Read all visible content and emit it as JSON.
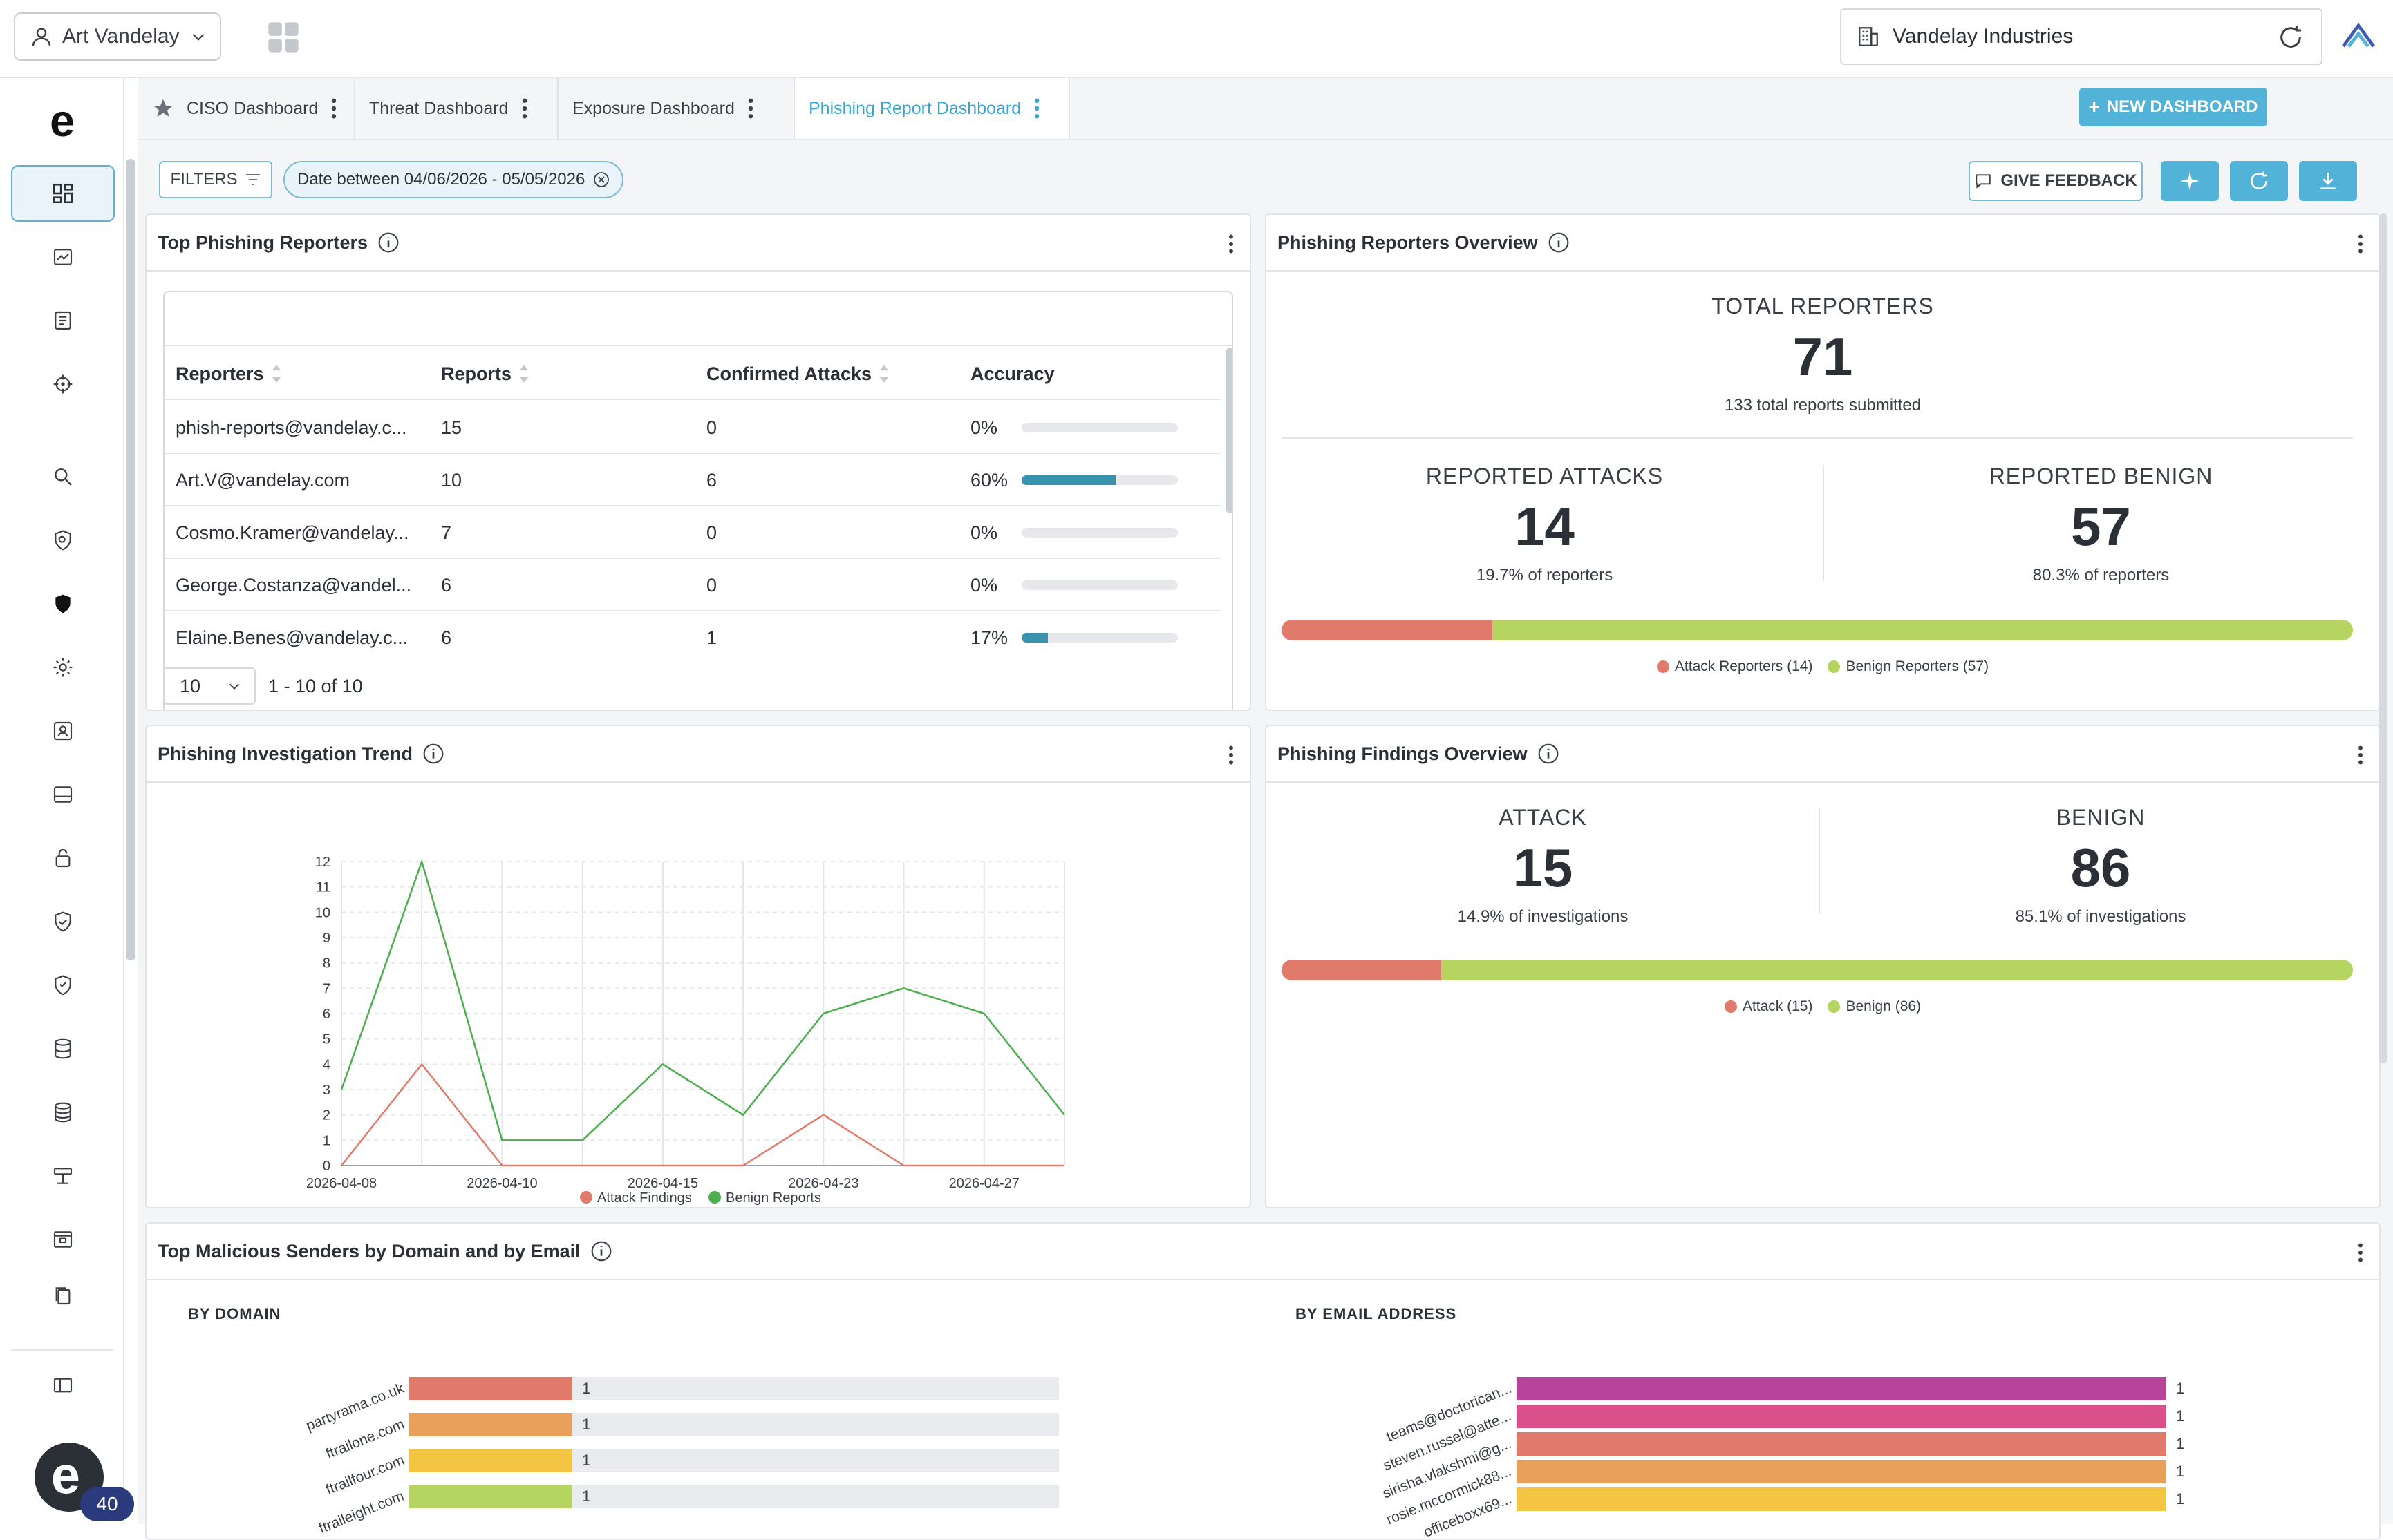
{
  "topbar": {
    "user_name": "Art Vandelay",
    "org_name": "Vandelay Industries"
  },
  "tabs": [
    {
      "label": "CISO Dashboard"
    },
    {
      "label": "Threat Dashboard"
    },
    {
      "label": "Exposure Dashboard"
    },
    {
      "label": "Phishing Report Dashboard"
    }
  ],
  "toolbar": {
    "new_dashboard": "NEW DASHBOARD",
    "filters": "FILTERS",
    "date_filter": "Date between 04/06/2026 - 05/05/2026",
    "feedback": "GIVE FEEDBACK"
  },
  "fab": {
    "badge": "40"
  },
  "top_reporters": {
    "title": "Top Phishing Reporters",
    "columns": [
      "Reporters",
      "Reports",
      "Confirmed Attacks",
      "Accuracy"
    ],
    "rows": [
      {
        "reporter": "phish-reports@vandelay.c...",
        "reports": "15",
        "confirmed": "0",
        "accuracy": "0%",
        "accuracy_value": 0
      },
      {
        "reporter": "Art.V@vandelay.com",
        "reports": "10",
        "confirmed": "6",
        "accuracy": "60%",
        "accuracy_value": 60
      },
      {
        "reporter": "Cosmo.Kramer@vandelay...",
        "reports": "7",
        "confirmed": "0",
        "accuracy": "0%",
        "accuracy_value": 0
      },
      {
        "reporter": "George.Costanza@vandel...",
        "reports": "6",
        "confirmed": "0",
        "accuracy": "0%",
        "accuracy_value": 0
      },
      {
        "reporter": "Elaine.Benes@vandelay.c...",
        "reports": "6",
        "confirmed": "1",
        "accuracy": "17%",
        "accuracy_value": 17
      }
    ],
    "page_size": "10",
    "page_range": "1 - 10 of 10"
  },
  "reporters_overview": {
    "title": "Phishing Reporters Overview",
    "total_label": "TOTAL REPORTERS",
    "total_value": "71",
    "total_sub": "133 total reports submitted",
    "attacks_label": "REPORTED ATTACKS",
    "attacks_value": "14",
    "attacks_sub": "19.7% of reporters",
    "benign_label": "REPORTED BENIGN",
    "benign_value": "57",
    "benign_sub": "80.3% of reporters",
    "attack_share": 19.7,
    "legend_attack": "Attack Reporters (14)",
    "legend_benign": "Benign Reporters (57)"
  },
  "findings_overview": {
    "title": "Phishing Findings Overview",
    "attack_label": "ATTACK",
    "attack_value": "15",
    "attack_sub": "14.9% of investigations",
    "benign_label": "BENIGN",
    "benign_value": "86",
    "benign_sub": "85.1% of investigations",
    "attack_share": 14.9,
    "legend_attack": "Attack (15)",
    "legend_benign": "Benign (86)"
  },
  "trend": {
    "title": "Phishing Investigation Trend"
  },
  "senders": {
    "title": "Top Malicious Senders by Domain and by Email",
    "by_domain_label": "BY DOMAIN",
    "by_email_label": "BY EMAIL ADDRESS"
  },
  "colors": {
    "accent": "#52b2d8",
    "attack": "#e07a6a",
    "benign": "#b6d460",
    "trend_attack": "#e07a6a",
    "trend_benign": "#4cae4c"
  },
  "chart_data": [
    {
      "type": "line",
      "x": [
        "2026-04-08",
        "2026-04-09",
        "2026-04-10",
        "2026-04-11",
        "2026-04-15",
        "2026-04-18",
        "2026-04-23",
        "2026-04-24",
        "2026-04-27",
        "2026-04-30"
      ],
      "x_tick_labels": [
        "2026-04-08",
        "2026-04-10",
        "2026-04-15",
        "2026-04-23",
        "2026-04-27"
      ],
      "y_ticks": [
        "0",
        "1",
        "2",
        "3",
        "4",
        "5",
        "6",
        "7",
        "8",
        "9",
        "10",
        "11",
        "12"
      ],
      "ylim": [
        0,
        12
      ],
      "grid": true,
      "legend": "bottom",
      "series": [
        {
          "name": "Attack Findings",
          "color": "#e07a6a",
          "values": [
            0,
            4,
            0,
            0,
            0,
            0,
            2,
            0,
            0,
            0
          ]
        },
        {
          "name": "Benign Reports",
          "color": "#4cae4c",
          "values": [
            3,
            12,
            1,
            1,
            4,
            2,
            6,
            7,
            6,
            2
          ]
        }
      ]
    },
    {
      "type": "bar",
      "orientation": "horizontal",
      "categories": [
        "partyrama.co.uk",
        "ftrailone.com",
        "ftrailfour.com",
        "ftraileight.com"
      ],
      "values": [
        1,
        1,
        1,
        1
      ],
      "colors": [
        "#e07a6a",
        "#e8a05a",
        "#f4c542",
        "#b6d460"
      ],
      "value_labels": [
        "1",
        "1",
        "1",
        "1"
      ]
    },
    {
      "type": "bar",
      "orientation": "horizontal",
      "categories": [
        "teams@doctorican...",
        "steven.russel@atte...",
        "sirisha.vlakshmi@g...",
        "rosie.mccormick88...",
        "officeboxx69..."
      ],
      "values": [
        1,
        1,
        1,
        1,
        1
      ],
      "colors": [
        "#b5449a",
        "#d9508a",
        "#e07a6a",
        "#e8a05a",
        "#f4c542"
      ],
      "value_labels": [
        "1",
        "1",
        "1",
        "1",
        "1"
      ]
    }
  ]
}
